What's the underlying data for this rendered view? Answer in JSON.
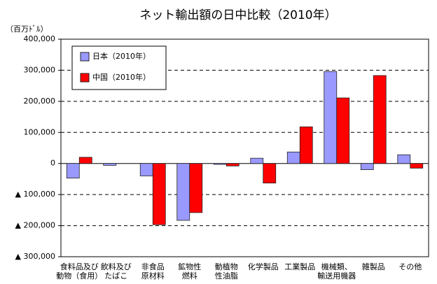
{
  "chart_data": {
    "type": "bar",
    "title": "ネット輸出額の日中比較（2010年）",
    "y_unit": "（百万ﾄﾞﾙ）",
    "categories": [
      "食料品及び\n動物（食用）",
      "飲料及び\nたばこ",
      "非食品\n原材料",
      "鉱物性\n燃料",
      "動植物\n性油脂",
      "化学製品",
      "工業製品",
      "機械類、\n輸送用機器",
      "雑製品",
      "その他"
    ],
    "series": [
      {
        "name": "日本（2010年）",
        "color": "#9999ff",
        "values": [
          -47000,
          -6000,
          -40000,
          -183000,
          -3000,
          17000,
          37000,
          296000,
          -20000,
          28000
        ]
      },
      {
        "name": "中国（2010年）",
        "color": "#ff0000",
        "values": [
          20000,
          null,
          -197000,
          -158000,
          -8000,
          -63000,
          118000,
          211000,
          283000,
          -15000
        ]
      }
    ],
    "ylim": [
      -300000,
      400000
    ],
    "yticks": [
      {
        "value": -300000,
        "label": "▲ 300,000"
      },
      {
        "value": -200000,
        "label": "▲ 200,000"
      },
      {
        "value": -100000,
        "label": "▲ 100,000"
      },
      0,
      {
        "value": 100000,
        "label": "100,000"
      },
      {
        "value": 200000,
        "label": "200,000"
      },
      {
        "value": 300000,
        "label": "300,000"
      },
      {
        "value": 400000,
        "label": "400,000"
      }
    ],
    "grid": true,
    "legend": "upper-left"
  }
}
